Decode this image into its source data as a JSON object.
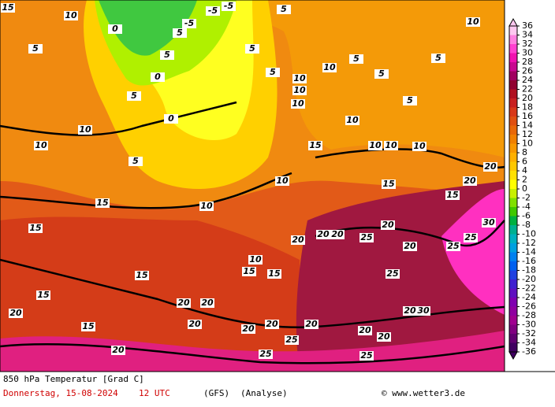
{
  "header": {
    "title": "850 hPa Temperatur [Grad C]",
    "date": "Donnerstag, 15-08-2024",
    "time": "12 UTC",
    "model": "(GFS)",
    "run": "(Analyse)",
    "credit": "© www.wetter3.de"
  },
  "colorbar": {
    "ticks": [
      36,
      34,
      32,
      30,
      28,
      26,
      24,
      22,
      20,
      18,
      16,
      14,
      12,
      10,
      8,
      6,
      4,
      2,
      0,
      -2,
      -4,
      -6,
      -8,
      -10,
      -12,
      -14,
      -16,
      -18,
      -20,
      -22,
      -24,
      -26,
      -28,
      -30,
      -32,
      -34,
      -36
    ],
    "colors": [
      "#ffc8f0",
      "#ff80e0",
      "#ff40d0",
      "#f010b0",
      "#c80890",
      "#a00060",
      "#900030",
      "#b01020",
      "#c82020",
      "#d83818",
      "#e05010",
      "#e86808",
      "#f08000",
      "#f89800",
      "#ffb000",
      "#ffc800",
      "#ffe000",
      "#ffff00",
      "#c8f000",
      "#80e000",
      "#40c800",
      "#00b040",
      "#00b090",
      "#00b0c0",
      "#00a0e0",
      "#0080f0",
      "#0060f0",
      "#2040e0",
      "#4020d0",
      "#6010c0",
      "#8000b0",
      "#9000a0",
      "#a00090",
      "#800080",
      "#600070",
      "#400060"
    ]
  },
  "contour_labels": [
    10,
    10,
    15,
    10,
    15,
    15,
    15,
    20,
    20,
    15,
    20,
    20,
    20,
    20,
    20,
    20,
    20,
    20,
    20,
    25,
    20,
    20,
    25,
    25,
    30,
    25,
    20,
    30,
    20,
    20,
    25,
    25,
    25,
    20,
    20,
    15,
    15,
    10,
    10,
    10,
    10,
    5,
    5,
    10,
    10,
    10,
    10,
    5,
    10,
    5,
    5,
    0,
    5,
    0,
    -5,
    -5,
    -5,
    10,
    5,
    10,
    15,
    15,
    15,
    5,
    5,
    5,
    15,
    10,
    5,
    5,
    0
  ]
}
